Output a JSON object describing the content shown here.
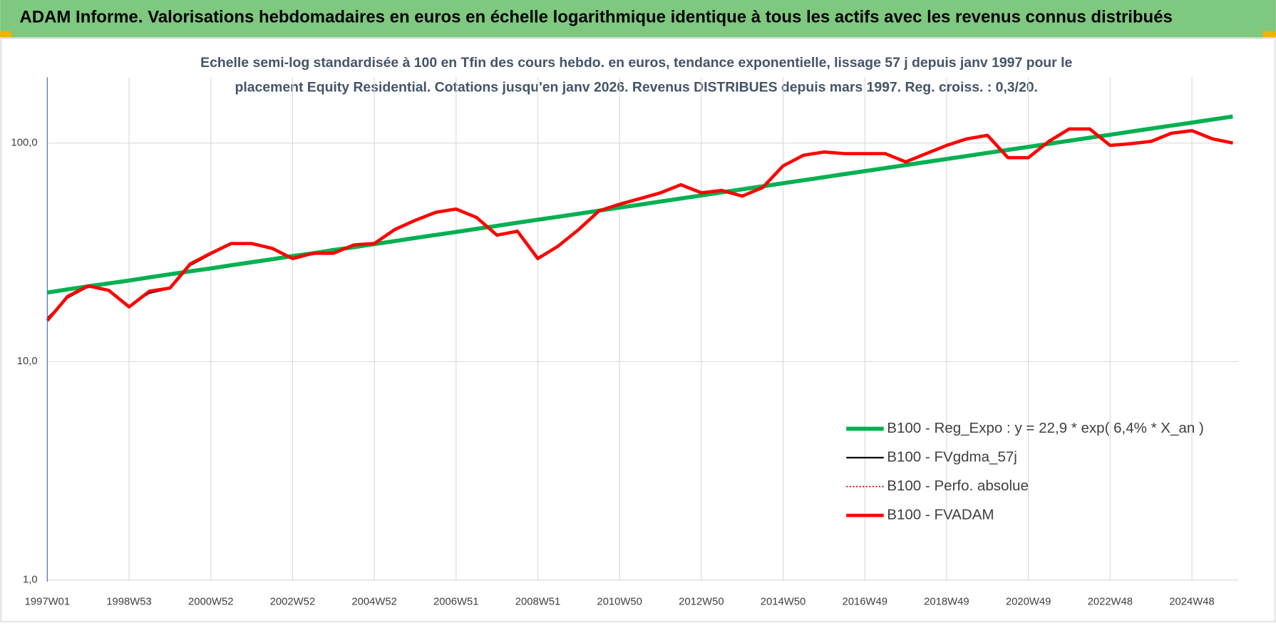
{
  "header": {
    "title": "ADAM Informe. Valorisations hebdomadaires en euros en échelle logarithmique identique à tous les actifs avec les revenus connus distribués"
  },
  "chart_data": {
    "type": "line",
    "subtitle": [
      "Echelle semi-log standardisée à 100 en Tfin des cours hebdo. en euros, tendance exponentielle, lissage 57 j depuis janv 1997 pour le",
      "placement Equity Residential. Cotations jusqu'en janv 2026. Revenus DISTRIBUES depuis mars 1997. Reg. croiss. : 0,3/20."
    ],
    "categories": [
      "1997W01",
      null,
      null,
      null,
      "1998W53",
      null,
      null,
      null,
      "2000W52",
      null,
      null,
      null,
      "2002W52",
      null,
      null,
      null,
      "2004W52",
      null,
      null,
      null,
      "2006W51",
      null,
      null,
      null,
      "2008W51",
      null,
      null,
      null,
      "2010W50",
      null,
      null,
      null,
      "2012W50",
      null,
      null,
      null,
      "2014W50",
      null,
      null,
      null,
      "2016W49",
      null,
      null,
      null,
      "2018W49",
      null,
      null,
      null,
      "2020W49",
      null,
      null,
      null,
      "2022W48",
      null,
      null,
      null,
      "2024W48",
      null,
      null
    ],
    "log_scale": true,
    "grid": true,
    "ylim": [
      1,
      200
    ],
    "yticks": [
      {
        "value": 1,
        "label": "1,0"
      },
      {
        "value": 10,
        "label": "10,0"
      },
      {
        "value": 100,
        "label": "100,0"
      }
    ],
    "legend": "lower right",
    "series": [
      {
        "name": "B100 - Reg_Expo : y = 22,9 * exp( 6,4% *  X_an )",
        "color": "#00b050",
        "style": "solid",
        "width": 5,
        "values": [
          20.7,
          21.4,
          22.1,
          22.8,
          23.5,
          24.3,
          25.1,
          25.9,
          26.7,
          27.6,
          28.5,
          29.4,
          30.4,
          31.3,
          32.4,
          33.4,
          34.5,
          35.6,
          36.8,
          38.0,
          39.2,
          40.5,
          41.8,
          43.2,
          44.6,
          46.0,
          47.5,
          49.1,
          50.7,
          52.3,
          54.0,
          55.8,
          57.6,
          59.5,
          61.4,
          63.4,
          65.5,
          67.6,
          69.8,
          72.1,
          74.4,
          76.8,
          79.3,
          81.9,
          84.6,
          87.3,
          90.2,
          93.1,
          96.1,
          99.2,
          102.5,
          105.8,
          109.2,
          112.8,
          116.4,
          120.2,
          124.1,
          128.2,
          132.3
        ]
      },
      {
        "name": "B100 - FVgdma_57j",
        "color": "#000000",
        "style": "solid",
        "width": 2,
        "values": [
          15.8,
          19.6,
          22.0,
          21.3,
          18.0,
          20.6,
          21.6,
          27.6,
          31.0,
          34.5,
          34.8,
          33.2,
          29.8,
          31.2,
          31.4,
          34.0,
          34.8,
          40.0,
          44.0,
          48.0,
          49.8,
          45.9,
          38.2,
          39.3,
          30.0,
          33.6,
          40.0,
          48.8,
          52.4,
          55.6,
          59.0,
          64.2,
          59.4,
          60.6,
          57.4,
          62.4,
          78.2,
          87.8,
          90.8,
          89.6,
          89.4,
          89.4,
          82.4,
          89.2,
          97.4,
          104.4,
          108.0,
          86.2,
          85.9,
          101.6,
          115.6,
          115.8,
          97.8,
          99.4,
          101.6,
          110.8,
          113.8,
          104.8,
          100.2
        ]
      },
      {
        "name": "B100 - Perfo. absolue",
        "color": "#c00000",
        "style": "dotted",
        "width": 1.5,
        "values": [
          15.4,
          19.9,
          22.2,
          21.2,
          17.8,
          21.0,
          21.7,
          28.0,
          31.3,
          34.7,
          34.7,
          33.0,
          29.6,
          31.3,
          31.3,
          34.2,
          34.7,
          40.2,
          44.3,
          48.2,
          49.9,
          45.7,
          37.9,
          39.5,
          29.6,
          33.8,
          40.2,
          49.0,
          52.5,
          55.7,
          59.2,
          64.5,
          59.2,
          60.7,
          57.2,
          62.6,
          78.6,
          88.0,
          91.0,
          89.5,
          89.5,
          89.5,
          82.0,
          89.5,
          97.6,
          104.6,
          108.4,
          85.7,
          85.7,
          101.8,
          116.0,
          116.0,
          97.6,
          99.4,
          101.8,
          111.0,
          114.0,
          104.6,
          100.0
        ]
      },
      {
        "name": "B100 - FVADAM",
        "color": "#ff0000",
        "style": "solid",
        "width": 4,
        "values": [
          15.4,
          19.9,
          22.2,
          21.2,
          17.8,
          21.0,
          21.7,
          28.0,
          31.3,
          34.7,
          34.7,
          33.0,
          29.6,
          31.3,
          31.3,
          34.2,
          34.7,
          40.2,
          44.3,
          48.2,
          49.9,
          45.7,
          37.9,
          39.5,
          29.6,
          33.8,
          40.2,
          49.0,
          52.5,
          55.7,
          59.2,
          64.5,
          59.2,
          60.7,
          57.2,
          62.6,
          78.6,
          88.0,
          91.0,
          89.5,
          89.5,
          89.5,
          82.0,
          89.5,
          97.6,
          104.6,
          108.4,
          85.7,
          85.7,
          101.8,
          116.0,
          116.0,
          97.6,
          99.4,
          101.8,
          111.0,
          114.0,
          104.6,
          100.0
        ]
      }
    ]
  }
}
